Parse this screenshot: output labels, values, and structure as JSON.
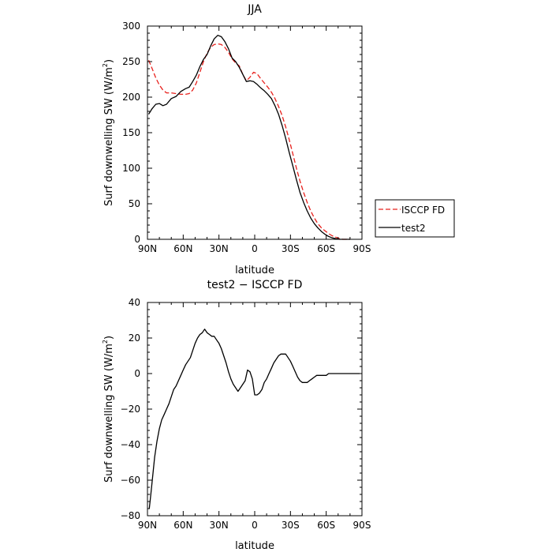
{
  "chart_data": [
    {
      "type": "line",
      "title": "JJA",
      "xlabel": "latitude",
      "ylabel": "Surf downwelling SW (W/m",
      "ylabel_sup": "2",
      "ylabel_close": ")",
      "xlim": [
        90,
        -90
      ],
      "ylim": [
        0,
        300
      ],
      "x_ticks": [
        90,
        60,
        30,
        0,
        -30,
        -60,
        -90
      ],
      "x_tick_labels": [
        "90N",
        "60N",
        "30N",
        "0",
        "30S",
        "60S",
        "90S"
      ],
      "y_ticks": [
        0,
        50,
        100,
        150,
        200,
        250,
        300
      ],
      "y_tick_labels": [
        "0",
        "50",
        "100",
        "150",
        "200",
        "250",
        "300"
      ],
      "legend_position": "right-middle, outside plot",
      "series": [
        {
          "name": "ISCCP FD",
          "color": "#e8201c",
          "dash": "dashed",
          "x": [
            89,
            86,
            83,
            80,
            77,
            74,
            70,
            66,
            62,
            58,
            55,
            52,
            49,
            46,
            43,
            40,
            37,
            34,
            31,
            28,
            25,
            22,
            19,
            16,
            13,
            10,
            7,
            4,
            1,
            -2,
            -5,
            -8,
            -11,
            -14,
            -17,
            -20,
            -23,
            -26,
            -29,
            -32,
            -35,
            -38,
            -41,
            -44,
            -47,
            -50,
            -53,
            -56,
            -59,
            -62,
            -65,
            -68,
            -71,
            -74,
            -77,
            -80
          ],
          "y": [
            252,
            240,
            227,
            217,
            210,
            206,
            206,
            205,
            204,
            204,
            205,
            210,
            220,
            235,
            250,
            262,
            270,
            274,
            275,
            274,
            270,
            263,
            254,
            248,
            244,
            232,
            223,
            228,
            235,
            233,
            226,
            220,
            214,
            207,
            198,
            187,
            174,
            158,
            140,
            120,
            100,
            82,
            66,
            52,
            40,
            30,
            22,
            16,
            12,
            8,
            5,
            3,
            1,
            0,
            0,
            0
          ]
        },
        {
          "name": "test2",
          "color": "#000000",
          "dash": "solid",
          "x": [
            89,
            86,
            83,
            80,
            77,
            74,
            70,
            66,
            62,
            58,
            55,
            52,
            49,
            46,
            43,
            40,
            37,
            34,
            31,
            28,
            25,
            22,
            19,
            16,
            13,
            10,
            7,
            4,
            1,
            -2,
            -5,
            -8,
            -11,
            -14,
            -17,
            -20,
            -23,
            -26,
            -29,
            -32,
            -35,
            -38,
            -41,
            -44,
            -47,
            -50,
            -53,
            -56,
            -59,
            -62,
            -65,
            -68,
            -71,
            -74,
            -77,
            -80
          ],
          "y": [
            176,
            184,
            190,
            191,
            188,
            190,
            198,
            201,
            208,
            212,
            214,
            222,
            231,
            243,
            253,
            260,
            272,
            282,
            287,
            285,
            278,
            268,
            255,
            250,
            242,
            232,
            222,
            223,
            222,
            218,
            213,
            209,
            204,
            198,
            188,
            176,
            160,
            142,
            122,
            103,
            84,
            66,
            52,
            40,
            30,
            22,
            16,
            11,
            7,
            4,
            2,
            1,
            0,
            0,
            0,
            0
          ]
        }
      ]
    },
    {
      "type": "line",
      "title": "test2 − ISCCP FD",
      "xlabel": "latitude",
      "ylabel": "Surf downwelling SW (W/m",
      "ylabel_sup": "2",
      "ylabel_close": ")",
      "xlim": [
        90,
        -90
      ],
      "ylim": [
        -80,
        40
      ],
      "x_ticks": [
        90,
        60,
        30,
        0,
        -30,
        -60,
        -90
      ],
      "x_tick_labels": [
        "90N",
        "60N",
        "30N",
        "0",
        "30S",
        "60S",
        "90S"
      ],
      "y_ticks": [
        -80,
        -60,
        -40,
        -20,
        0,
        20,
        40
      ],
      "y_tick_labels": [
        "−80",
        "−60",
        "−40",
        "−20",
        "0",
        "20",
        "40"
      ],
      "series": [
        {
          "color": "#000000",
          "dash": "solid",
          "x": [
            88.5,
            87,
            85.5,
            84,
            82,
            80,
            78,
            76,
            74,
            72,
            70,
            68,
            66,
            64,
            62,
            60,
            58,
            56,
            54,
            52,
            50,
            48,
            46,
            44,
            42,
            40,
            38,
            36,
            34,
            32,
            30,
            28,
            26,
            24,
            22,
            20,
            18,
            16,
            14,
            12,
            10,
            8,
            6,
            4,
            2,
            0,
            -2,
            -4,
            -6,
            -8,
            -10,
            -12,
            -14,
            -16,
            -18,
            -20,
            -22,
            -24,
            -26,
            -28,
            -30,
            -32,
            -34,
            -36,
            -38,
            -40,
            -42,
            -44,
            -46,
            -48,
            -50,
            -52,
            -54,
            -56,
            -58,
            -60,
            -62,
            -64,
            -66,
            -68,
            -70,
            -72,
            -74,
            -76,
            -78,
            -80,
            -82,
            -84,
            -86,
            -88
          ],
          "y": [
            -76,
            -67,
            -57,
            -47,
            -38,
            -31,
            -26,
            -23,
            -20,
            -17,
            -13,
            -9,
            -7,
            -4,
            -1,
            2,
            5,
            7,
            9,
            13,
            17,
            20,
            22,
            23,
            25,
            23,
            22,
            21,
            21,
            19,
            17,
            14,
            10,
            6,
            1,
            -3,
            -6,
            -8,
            -10,
            -8,
            -6,
            -4,
            2,
            1,
            -3,
            -12,
            -12,
            -11,
            -9,
            -5,
            -3,
            0,
            3,
            6,
            8,
            10,
            11,
            11,
            11,
            9,
            7,
            4,
            1,
            -2,
            -4,
            -5,
            -5,
            -5,
            -4,
            -3,
            -2,
            -1,
            -1,
            -1,
            -1,
            -1,
            0,
            0,
            0,
            0,
            0,
            0,
            0,
            0,
            0,
            0,
            0,
            0,
            0,
            0
          ]
        }
      ]
    }
  ]
}
